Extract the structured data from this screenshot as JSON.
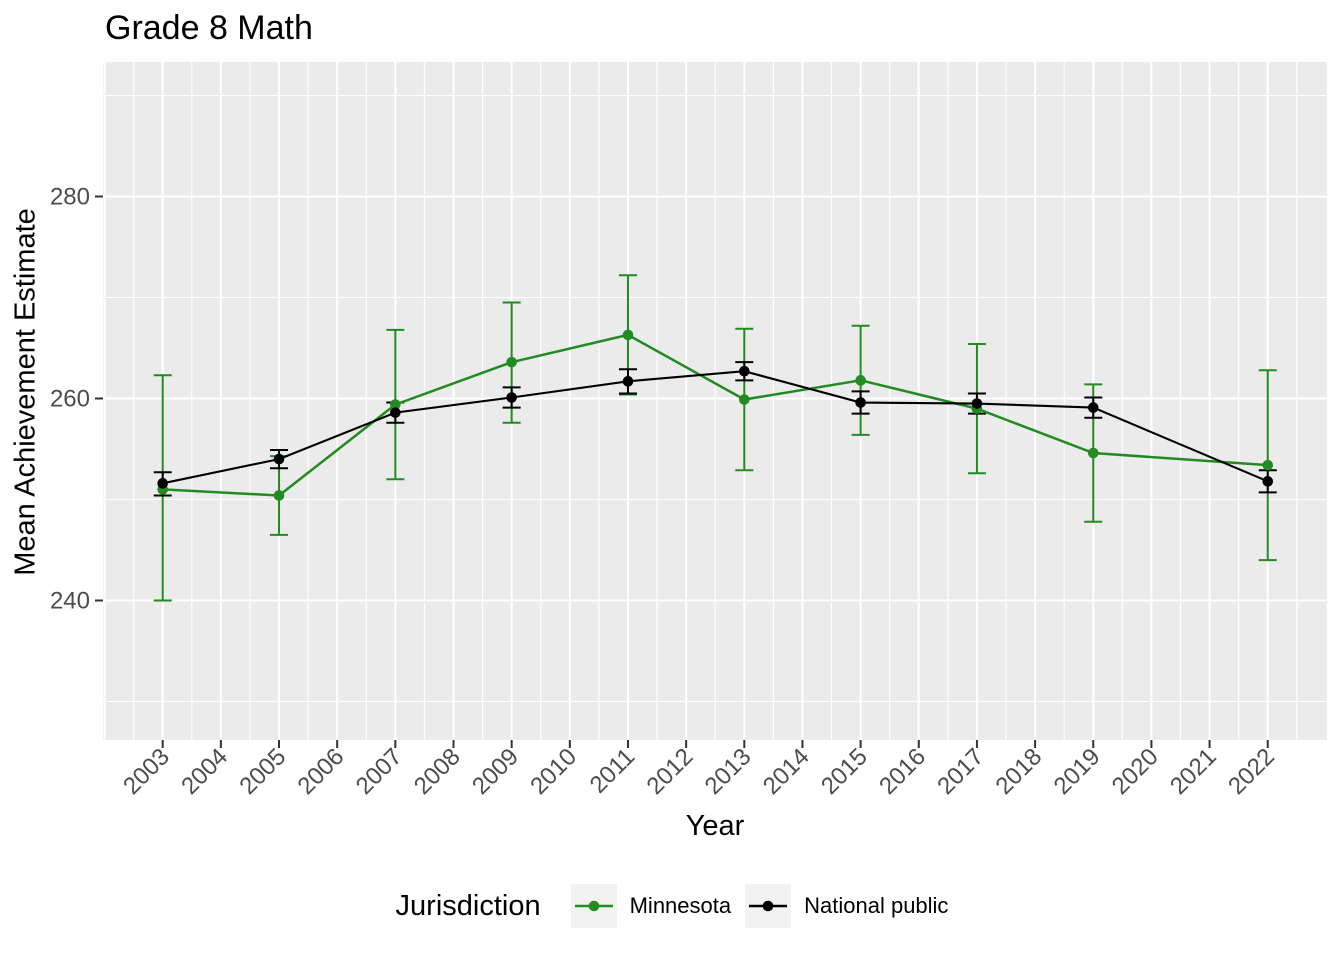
{
  "title": "Grade 8 Math",
  "axes": {
    "x_label": "Year",
    "y_label": "Mean Achievement Estimate",
    "x_ticks": [
      2003,
      2004,
      2005,
      2006,
      2007,
      2008,
      2009,
      2010,
      2011,
      2012,
      2013,
      2014,
      2015,
      2016,
      2017,
      2018,
      2019,
      2020,
      2021,
      2022
    ],
    "y_ticks": [
      240,
      260,
      280
    ],
    "y_minor_ticks": [
      230,
      250,
      270,
      290
    ],
    "x_range": [
      2001.97,
      2023.03
    ],
    "y_range": [
      226.2,
      293.3
    ],
    "grid": true
  },
  "legend": {
    "title": "Jurisdiction",
    "position": "bottom"
  },
  "colors": {
    "minnesota": "#228B22",
    "national_public": "#000000",
    "panel_background": "#EBEBEB",
    "gridline": "#FFFFFF",
    "tick_mark": "#333333",
    "tick_text": "#4D4D4D",
    "legend_key_background": "#F2F2F2"
  },
  "chart_data": {
    "type": "line",
    "title": "Grade 8 Math",
    "xlabel": "Year",
    "ylabel": "Mean Achievement Estimate",
    "x": [
      2003,
      2005,
      2007,
      2009,
      2011,
      2013,
      2015,
      2017,
      2019,
      2022
    ],
    "error_bars": true,
    "legend_position": "bottom",
    "ylim": [
      226.2,
      293.3
    ],
    "series": [
      {
        "name": "Minnesota",
        "color": "#228B22",
        "values": [
          251.0,
          250.4,
          259.4,
          263.6,
          266.3,
          259.9,
          261.8,
          259.0,
          254.6,
          253.4
        ],
        "ci_low": [
          240.0,
          246.5,
          252.0,
          257.6,
          260.4,
          252.9,
          256.4,
          252.6,
          247.8,
          244.0
        ],
        "ci_high": [
          262.3,
          254.3,
          266.8,
          269.5,
          272.2,
          266.9,
          267.2,
          265.4,
          261.4,
          262.8
        ]
      },
      {
        "name": "National public",
        "color": "#000000",
        "values": [
          251.6,
          254.0,
          258.6,
          260.1,
          261.7,
          262.7,
          259.6,
          259.5,
          259.1,
          251.8
        ],
        "ci_low": [
          250.4,
          253.1,
          257.6,
          259.1,
          260.5,
          261.8,
          258.5,
          258.5,
          258.1,
          250.7
        ],
        "ci_high": [
          252.7,
          254.9,
          259.6,
          261.1,
          262.9,
          263.6,
          260.7,
          260.5,
          260.1,
          252.9
        ]
      }
    ]
  }
}
